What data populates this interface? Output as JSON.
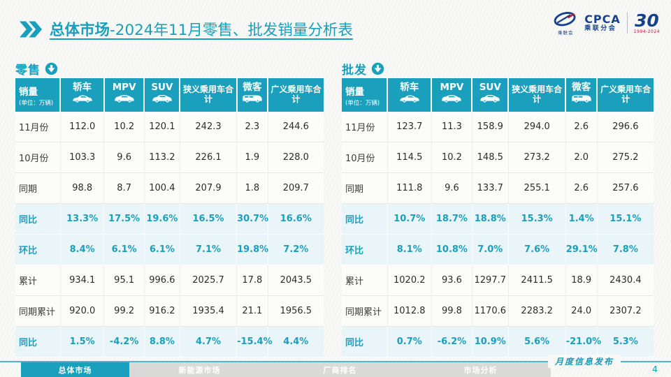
{
  "slide": {
    "title_bold": "总体市场",
    "title_rest": "-2024年11月零售、批发销量分析表",
    "footer_note": "月度信息发布",
    "page_number": "4",
    "accent_color": "#1A9FBC",
    "percent_row_bg": "#EAF5F9"
  },
  "logo": {
    "cpca_text": "CPCA",
    "cpca_sub": "乘联分会",
    "mark_caption": "乘联会",
    "anniversary_number": "30",
    "anniversary_years": "1994-2024",
    "watermark": "CPCA 乘联分会"
  },
  "table_header": {
    "label": "销量",
    "unit": "(单位：万辆)",
    "columns": [
      {
        "label": "轿车",
        "icon": "sedan-icon"
      },
      {
        "label": "MPV",
        "icon": "mpv-icon"
      },
      {
        "label": "SUV",
        "icon": "suv-icon"
      },
      {
        "label": "狭义乘用车合计",
        "icon": ""
      },
      {
        "label": "微客",
        "icon": "microvan-icon"
      },
      {
        "label": "广义乘用车合计",
        "icon": ""
      }
    ]
  },
  "chart_data": [
    {
      "type": "table",
      "title": "零售",
      "unit": "单位：万辆",
      "columns": [
        "轿车",
        "MPV",
        "SUV",
        "狭义乘用车合计",
        "微客",
        "广义乘用车合计"
      ],
      "rows": [
        {
          "label": "11月份",
          "pct": false,
          "values": [
            "112.0",
            "10.2",
            "120.1",
            "242.3",
            "2.3",
            "244.6"
          ]
        },
        {
          "label": "10月份",
          "pct": false,
          "values": [
            "103.3",
            "9.6",
            "113.2",
            "226.1",
            "1.9",
            "228.0"
          ]
        },
        {
          "label": "同期",
          "pct": false,
          "values": [
            "98.8",
            "8.7",
            "100.4",
            "207.9",
            "1.8",
            "209.7"
          ]
        },
        {
          "label": "同比",
          "pct": true,
          "values": [
            "13.3%",
            "17.5%",
            "19.6%",
            "16.5%",
            "30.7%",
            "16.6%"
          ]
        },
        {
          "label": "环比",
          "pct": true,
          "values": [
            "8.4%",
            "6.1%",
            "6.1%",
            "7.1%",
            "19.8%",
            "7.2%"
          ]
        },
        {
          "label": "累计",
          "pct": false,
          "values": [
            "934.1",
            "95.1",
            "996.6",
            "2025.7",
            "17.8",
            "2043.5"
          ]
        },
        {
          "label": "同期累计",
          "pct": false,
          "values": [
            "920.0",
            "99.2",
            "916.2",
            "1935.4",
            "21.1",
            "1956.5"
          ]
        },
        {
          "label": "同比",
          "pct": true,
          "values": [
            "1.5%",
            "-4.2%",
            "8.8%",
            "4.7%",
            "-15.4%",
            "4.4%"
          ]
        }
      ]
    },
    {
      "type": "table",
      "title": "批发",
      "unit": "单位：万辆",
      "columns": [
        "轿车",
        "MPV",
        "SUV",
        "狭义乘用车合计",
        "微客",
        "广义乘用车合计"
      ],
      "rows": [
        {
          "label": "11月份",
          "pct": false,
          "values": [
            "123.7",
            "11.3",
            "158.9",
            "294.0",
            "2.6",
            "296.6"
          ]
        },
        {
          "label": "10月份",
          "pct": false,
          "values": [
            "114.5",
            "10.2",
            "148.5",
            "273.2",
            "2.0",
            "275.2"
          ]
        },
        {
          "label": "同期",
          "pct": false,
          "values": [
            "111.8",
            "9.6",
            "133.7",
            "255.1",
            "2.6",
            "257.6"
          ]
        },
        {
          "label": "同比",
          "pct": true,
          "values": [
            "10.7%",
            "18.7%",
            "18.8%",
            "15.3%",
            "1.4%",
            "15.1%"
          ]
        },
        {
          "label": "环比",
          "pct": true,
          "values": [
            "8.1%",
            "10.8%",
            "7.0%",
            "7.6%",
            "29.1%",
            "7.8%"
          ]
        },
        {
          "label": "累计",
          "pct": false,
          "values": [
            "1020.2",
            "93.6",
            "1297.7",
            "2411.5",
            "18.9",
            "2430.4"
          ]
        },
        {
          "label": "同期累计",
          "pct": false,
          "values": [
            "1012.8",
            "99.8",
            "1170.6",
            "2283.2",
            "24.0",
            "2307.2"
          ]
        },
        {
          "label": "同比",
          "pct": true,
          "values": [
            "0.7%",
            "-6.2%",
            "10.9%",
            "5.6%",
            "-21.0%",
            "5.3%"
          ]
        }
      ]
    }
  ],
  "footer_tabs": [
    {
      "label": "总体市场",
      "active": true
    },
    {
      "label": "新能源市场",
      "active": false
    },
    {
      "label": "厂商排名",
      "active": false
    },
    {
      "label": "市场分析",
      "active": false
    }
  ]
}
